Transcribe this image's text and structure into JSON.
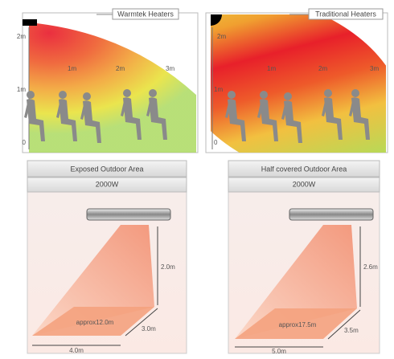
{
  "panels": [
    {
      "title": "Warmtek Heaters",
      "height_labels": [
        "2m",
        "1m",
        "0"
      ],
      "distance_labels": [
        "1m",
        "2m",
        "3m"
      ]
    },
    {
      "title": "Traditional Heaters",
      "height_labels": [
        "2m",
        "1m",
        "0"
      ],
      "distance_labels": [
        "1m",
        "2m",
        "3m"
      ]
    }
  ],
  "areas": [
    {
      "title": "Exposed Outdoor Area",
      "power": "2000W",
      "height": "2.0m",
      "area": "approx12.0m",
      "depth": "3.0m",
      "width": "4.0m"
    },
    {
      "title": "Half covered Outdoor Area",
      "power": "2000W",
      "height": "2.6m",
      "area": "approx17.5m",
      "depth": "3.5m",
      "width": "5.0m"
    }
  ]
}
